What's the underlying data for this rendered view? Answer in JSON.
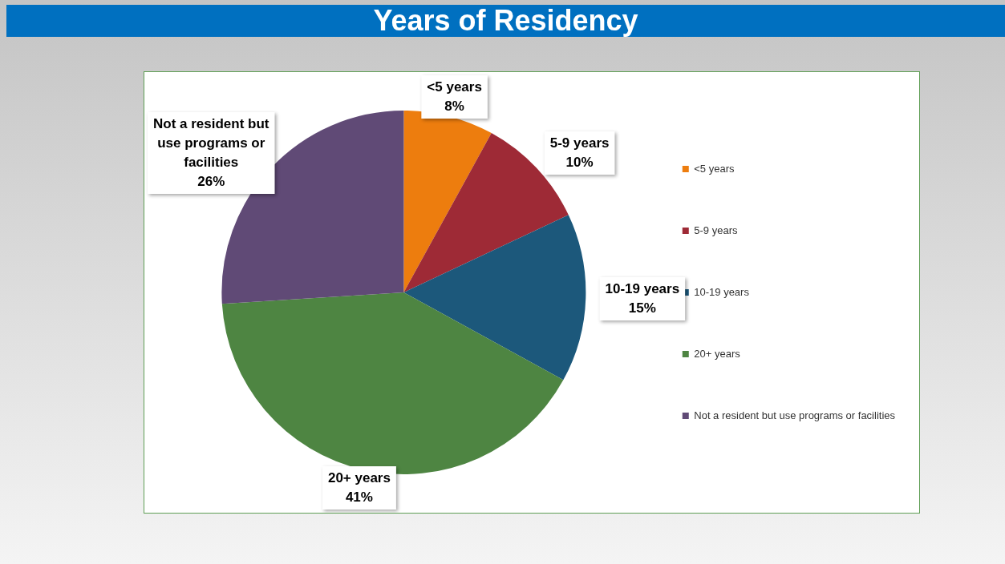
{
  "chart_data": {
    "type": "pie",
    "title": "Years of Residency",
    "categories": [
      "<5 years",
      "5-9 years",
      "10-19 years",
      "20+ years",
      "Not a resident but use programs or facilities"
    ],
    "values": [
      8,
      10,
      15,
      41,
      26
    ],
    "value_labels": [
      "8%",
      "10%",
      "15%",
      "41%",
      "26%"
    ],
    "colors": [
      "#ed7d0e",
      "#9e2a36",
      "#1c587b",
      "#4e8542",
      "#604a76"
    ],
    "legend": "right"
  }
}
